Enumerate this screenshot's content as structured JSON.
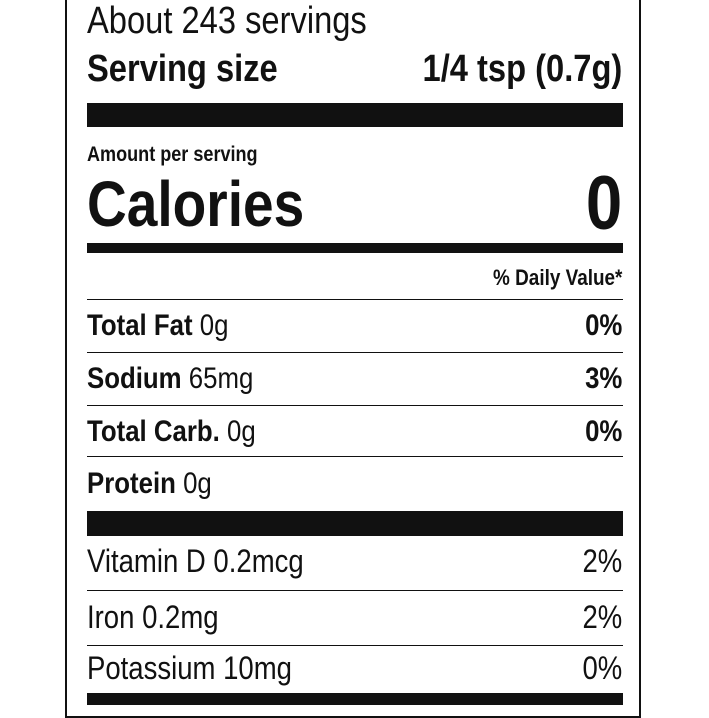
{
  "servings": "About 243 servings",
  "serving_size": {
    "label": "Serving size",
    "value": "1/4 tsp (0.7g)"
  },
  "amount_per_serving": "Amount per serving",
  "calories": {
    "label": "Calories",
    "value": "0"
  },
  "daily_value_header": "% Daily Value*",
  "nutrients": [
    {
      "name": "Total Fat",
      "amount": "0g",
      "dv": "0%"
    },
    {
      "name": "Sodium",
      "amount": "65mg",
      "dv": "3%"
    },
    {
      "name": "Total Carb.",
      "amount": "0g",
      "dv": "0%"
    },
    {
      "name": "Protein",
      "amount": "0g",
      "dv": ""
    }
  ],
  "micronutrients": [
    {
      "label": "Vitamin D 0.2mcg",
      "dv": "2%"
    },
    {
      "label": "Iron 0.2mg",
      "dv": "2%"
    },
    {
      "label": "Potassium 10mg",
      "dv": "0%"
    }
  ]
}
